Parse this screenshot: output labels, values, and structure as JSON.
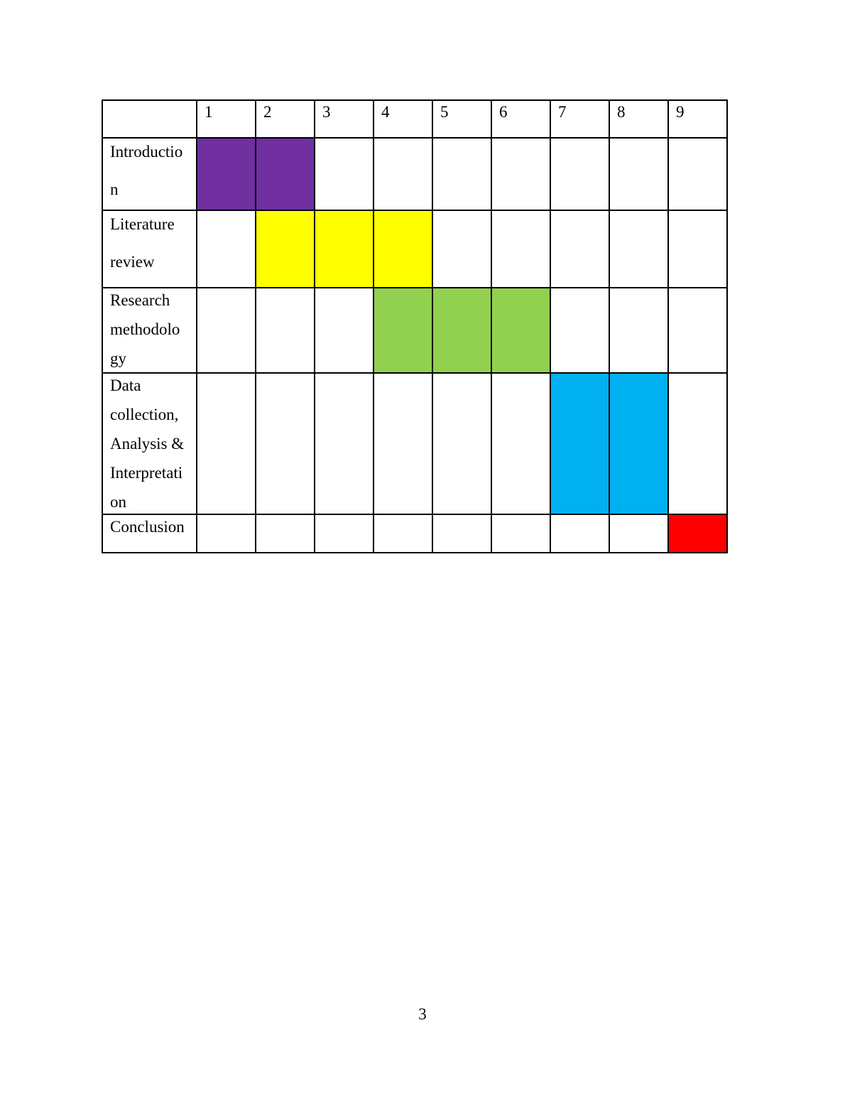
{
  "page_number": "3",
  "colors": {
    "purple": "#7030A0",
    "yellow": "#FFFF00",
    "green": "#92D050",
    "blue": "#00B0F0",
    "red": "#FF0000",
    "border": "#000000",
    "page_background": "#FFFFFF"
  },
  "table": {
    "header_columns": [
      "1",
      "2",
      "3",
      "4",
      "5",
      "6",
      "7",
      "8",
      "9"
    ],
    "rows": [
      {
        "id": "introduction",
        "label": "Introductio\nn",
        "bar_start": 1,
        "bar_end": 2,
        "bar_color": "purple"
      },
      {
        "id": "literature-review",
        "label": "Literature\nreview",
        "bar_start": 2,
        "bar_end": 4,
        "bar_color": "yellow"
      },
      {
        "id": "research-methodology",
        "label": "Research\nmethodolo\ngy",
        "bar_start": 4,
        "bar_end": 6,
        "bar_color": "green"
      },
      {
        "id": "data-collection",
        "label": "Data\ncollection,\nAnalysis &\nInterpretati\non",
        "bar_start": 7,
        "bar_end": 8,
        "bar_color": "blue"
      },
      {
        "id": "conclusion",
        "label": "Conclusion",
        "bar_start": 9,
        "bar_end": 9,
        "bar_color": "red"
      }
    ]
  },
  "chart_data": {
    "type": "table",
    "title": "",
    "x_ticks": [
      "1",
      "2",
      "3",
      "4",
      "5",
      "6",
      "7",
      "8",
      "9"
    ],
    "grid": true,
    "tasks": [
      {
        "name": "Introduction",
        "start_period": 1,
        "end_period": 2,
        "color": "#7030A0"
      },
      {
        "name": "Literature review",
        "start_period": 2,
        "end_period": 4,
        "color": "#FFFF00"
      },
      {
        "name": "Research methodology",
        "start_period": 4,
        "end_period": 6,
        "color": "#92D050"
      },
      {
        "name": "Data collection, Analysis & Interpretation",
        "start_period": 7,
        "end_period": 8,
        "color": "#00B0F0"
      },
      {
        "name": "Conclusion",
        "start_period": 9,
        "end_period": 9,
        "color": "#FF0000"
      }
    ]
  }
}
